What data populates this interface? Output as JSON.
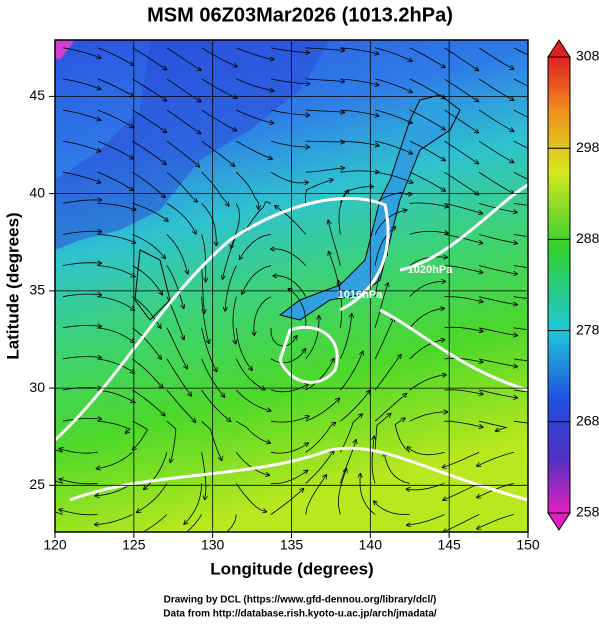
{
  "chart_data": {
    "type": "map",
    "title": "MSM 06Z03Mar2026 (1013.2hPa)",
    "xlabel": "Longitude (degrees)",
    "ylabel": "Latitude  (degrees)",
    "xlim": [
      120,
      150
    ],
    "xticks": [
      120,
      125,
      130,
      135,
      140,
      145,
      150
    ],
    "ylim": [
      22.6,
      47.9
    ],
    "yticks": [
      25,
      30,
      35,
      40,
      45
    ],
    "grid": true,
    "clim": [
      258,
      308
    ],
    "cticks": [
      258,
      268,
      278,
      288,
      298,
      308
    ],
    "contour_labels": [
      "1020hPa",
      "1016hPa"
    ],
    "credits": [
      "Drawing by DCL (https://www.gfd-dennou.org/library/dcl/)",
      "Data from http://database.rish.kyoto-u.ac.jp/arch/jmadata/"
    ]
  }
}
